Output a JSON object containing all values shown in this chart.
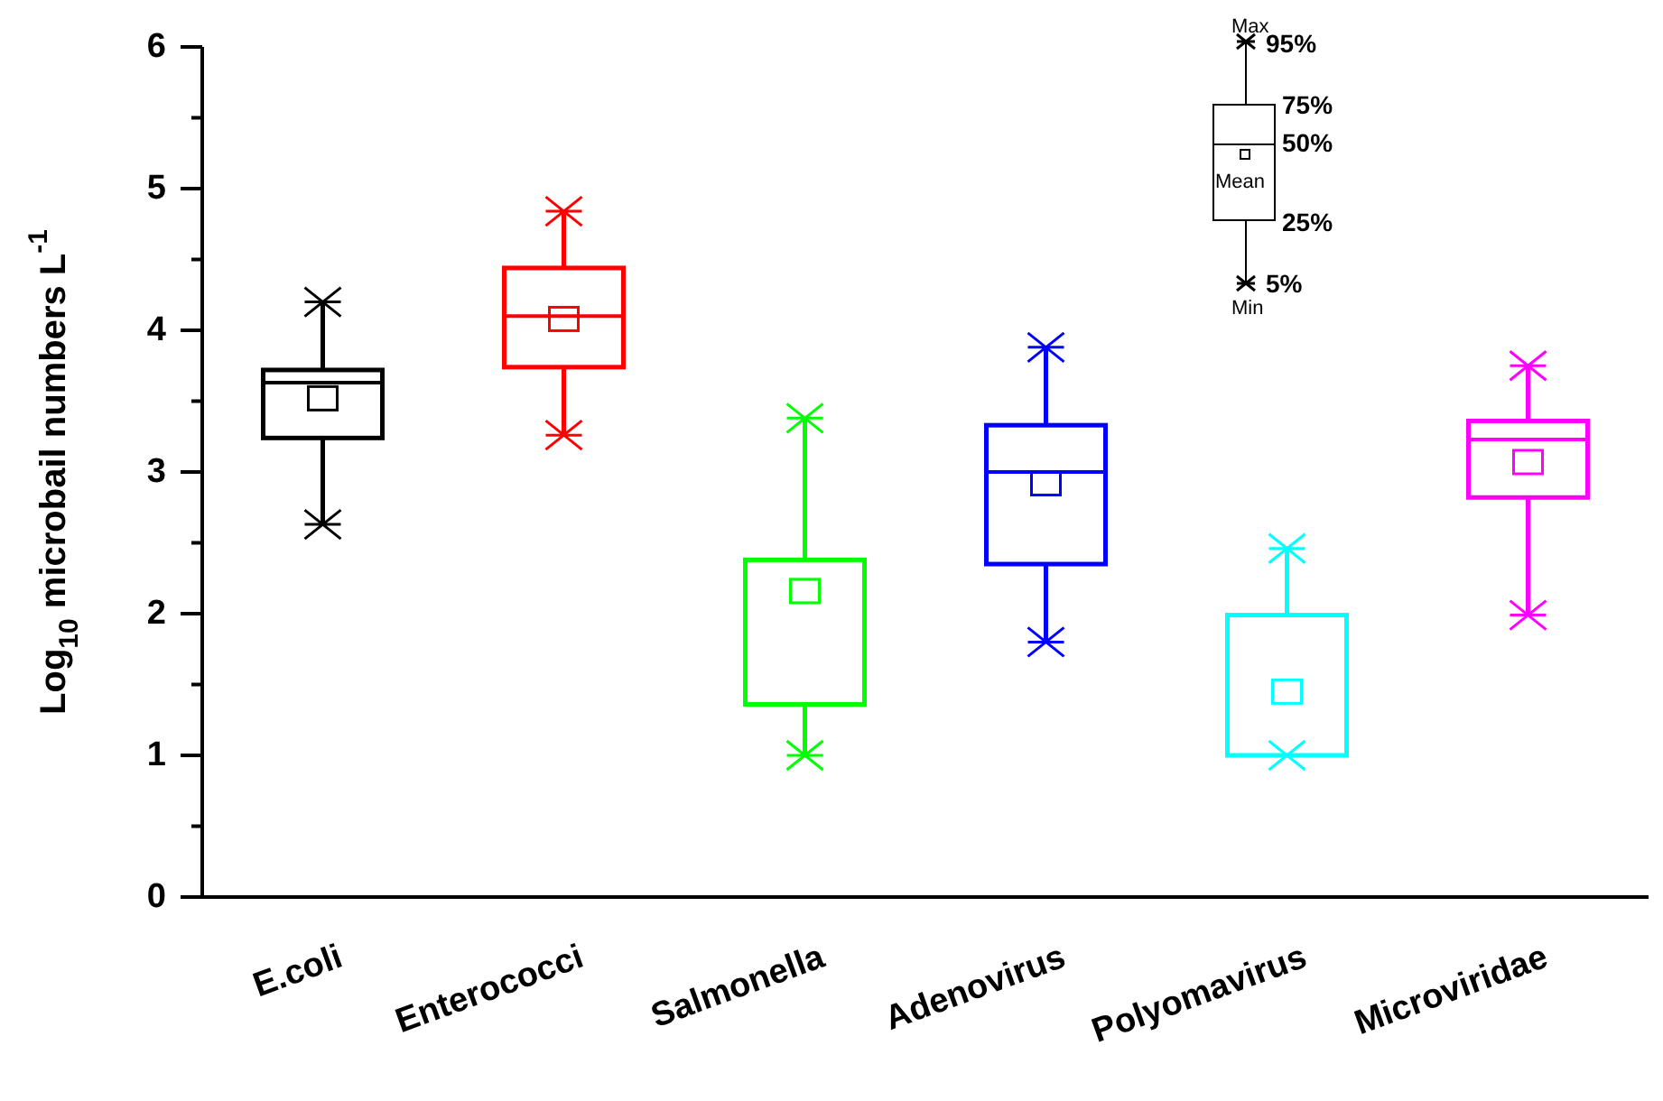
{
  "chart_data": {
    "type": "box",
    "ylabel": "Log$_{10}$ microbail numbers L$^{-1}$",
    "categories": [
      "E.coli",
      "Enterococci",
      "Salmonella",
      "Adenovirus",
      "Polyomavirus",
      "Microviridae"
    ],
    "colors": [
      "#000000",
      "#ff0000",
      "#00ff00",
      "#0000ff",
      "#00ffff",
      "#ff00ff"
    ],
    "boxes": [
      {
        "low": 2.63,
        "q1": 3.24,
        "median": 3.63,
        "q3": 3.72,
        "high": 4.2,
        "mean": 3.52
      },
      {
        "low": 3.26,
        "q1": 3.74,
        "median": 4.1,
        "q3": 4.44,
        "high": 4.84,
        "mean": 4.08
      },
      {
        "low": 1.0,
        "q1": 1.36,
        "median": 2.38,
        "q3": 2.38,
        "high": 3.38,
        "mean": 2.16
      },
      {
        "low": 1.8,
        "q1": 2.35,
        "median": 3.0,
        "q3": 3.33,
        "high": 3.88,
        "mean": 2.92
      },
      {
        "low": 1.0,
        "q1": 1.0,
        "median": 1.0,
        "q3": 1.99,
        "high": 2.46,
        "mean": 1.45
      },
      {
        "low": 1.99,
        "q1": 2.82,
        "median": 3.23,
        "q3": 3.36,
        "high": 3.75,
        "mean": 3.07
      }
    ],
    "ylim": [
      0,
      6
    ],
    "yticks": [
      0,
      {
        "value": 0.5,
        "label": null
      },
      1,
      {
        "value": 1.5,
        "label": null
      },
      2,
      {
        "value": 2.5,
        "label": null
      },
      3,
      {
        "value": 3.5,
        "label": null
      },
      4,
      {
        "value": 4.5,
        "label": null
      },
      5,
      {
        "value": 5.5,
        "label": null
      },
      6
    ],
    "annotations": [
      "Max",
      "95%",
      "75%",
      "50%",
      "Mean",
      "25%",
      "5%",
      "Min"
    ],
    "marker": "star"
  }
}
